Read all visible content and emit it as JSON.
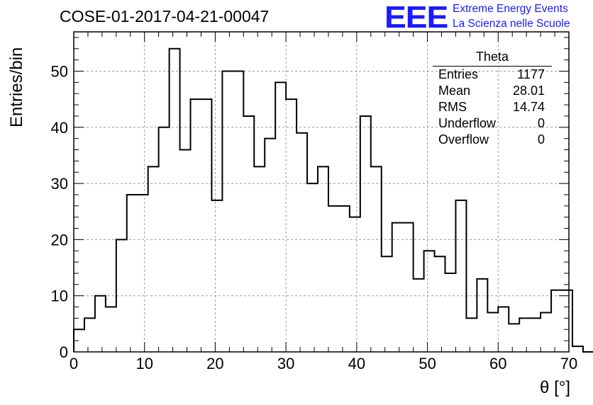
{
  "header": {
    "title": "COSE-01-2017-04-21-00047",
    "logo": "EEE",
    "logo_line1": "Extreme Energy Events",
    "logo_line2": "La Scienza nelle Scuole"
  },
  "stats_box": {
    "title": "Theta",
    "rows": [
      {
        "label": "Entries",
        "value": "1177"
      },
      {
        "label": "Mean",
        "value": "28.01"
      },
      {
        "label": "RMS",
        "value": "14.74"
      },
      {
        "label": "Underflow",
        "value": "0"
      },
      {
        "label": "Overflow",
        "value": "0"
      }
    ]
  },
  "colors": {
    "logo": "#1a1aff",
    "line": "#000000",
    "grid": "#9a9a9a"
  },
  "chart_data": {
    "type": "histogram",
    "title": "COSE-01-2017-04-21-00047",
    "xlabel": "θ [°]",
    "ylabel": "Entries/bin",
    "xlim": [
      0,
      70
    ],
    "ylim": [
      0,
      57
    ],
    "grid": true,
    "bin_width": 1.5,
    "bin_start": 0,
    "values": [
      4,
      6,
      10,
      8,
      20,
      28,
      28,
      33,
      40,
      54,
      36,
      45,
      45,
      27,
      50,
      50,
      42,
      33,
      38,
      48,
      45,
      39,
      30,
      33,
      26,
      26,
      24,
      42,
      33,
      17,
      23,
      23,
      13,
      18,
      17,
      14,
      27,
      6,
      13,
      7,
      8,
      5,
      6,
      6,
      7,
      11,
      11,
      1,
      0
    ],
    "x_ticks": [
      0,
      10,
      20,
      30,
      40,
      50,
      60,
      70
    ],
    "x_tick_labels": [
      "0",
      "10",
      "20",
      "30",
      "40",
      "50",
      "60",
      "70"
    ],
    "y_ticks": [
      0,
      10,
      20,
      30,
      40,
      50
    ],
    "y_tick_labels": [
      "0",
      "10",
      "20",
      "30",
      "40",
      "50"
    ]
  }
}
